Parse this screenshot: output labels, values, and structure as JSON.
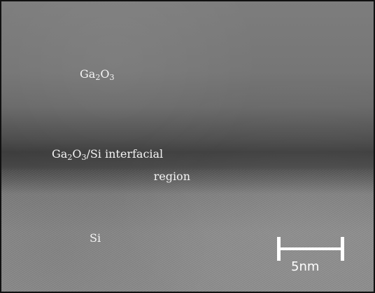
{
  "labels": {
    "top_layer": {
      "base": "Ga",
      "sub1": "2",
      "mid": "O",
      "sub2": "3"
    },
    "interface": {
      "line1_base": "Ga",
      "line1_sub1": "2",
      "line1_mid": "O",
      "line1_sub2": "3",
      "line1_rest": "/Si interfacial",
      "line2": "region"
    },
    "substrate": "Si"
  },
  "scale_bar": {
    "label": "5nm",
    "color": "#ffffff"
  }
}
